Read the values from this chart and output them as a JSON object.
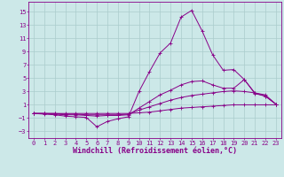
{
  "background_color": "#cce8e8",
  "grid_color": "#aacccc",
  "line_color": "#880088",
  "marker": "+",
  "xlabel": "Windchill (Refroidissement éolien,°C)",
  "xlabel_fontsize": 6,
  "tick_fontsize": 5,
  "yticks": [
    -3,
    -1,
    1,
    3,
    5,
    7,
    9,
    11,
    13,
    15
  ],
  "xticks": [
    0,
    1,
    2,
    3,
    4,
    5,
    6,
    7,
    8,
    9,
    10,
    11,
    12,
    13,
    14,
    15,
    16,
    17,
    18,
    19,
    20,
    21,
    22,
    23
  ],
  "xlim": [
    -0.5,
    23.5
  ],
  "ylim": [
    -4,
    16.5
  ],
  "curves": [
    {
      "x": [
        0,
        1,
        2,
        3,
        4,
        5,
        6,
        7,
        8,
        9,
        10,
        11,
        12,
        13,
        14,
        15,
        16,
        17,
        18,
        19,
        20,
        21,
        22,
        23
      ],
      "y": [
        -0.3,
        -0.3,
        -0.3,
        -0.3,
        -0.3,
        -0.3,
        -0.3,
        -0.3,
        -0.3,
        -0.3,
        -0.2,
        -0.1,
        0.1,
        0.3,
        0.5,
        0.6,
        0.7,
        0.8,
        0.9,
        1.0,
        1.0,
        1.0,
        1.0,
        1.0
      ]
    },
    {
      "x": [
        0,
        1,
        2,
        3,
        4,
        5,
        6,
        7,
        8,
        9,
        10,
        11,
        12,
        13,
        14,
        15,
        16,
        17,
        18,
        19,
        20,
        21,
        22,
        23
      ],
      "y": [
        -0.3,
        -0.3,
        -0.3,
        -0.4,
        -0.4,
        -0.5,
        -0.5,
        -0.5,
        -0.5,
        -0.4,
        0.2,
        0.7,
        1.2,
        1.7,
        2.1,
        2.4,
        2.6,
        2.8,
        3.0,
        3.1,
        3.0,
        2.8,
        2.5,
        1.1
      ]
    },
    {
      "x": [
        0,
        1,
        2,
        3,
        4,
        5,
        6,
        7,
        8,
        9,
        10,
        11,
        12,
        13,
        14,
        15,
        16,
        17,
        18,
        19,
        20,
        21,
        22,
        23
      ],
      "y": [
        -0.3,
        -0.3,
        -0.4,
        -0.5,
        -0.5,
        -0.6,
        -0.7,
        -0.6,
        -0.6,
        -0.5,
        0.5,
        1.5,
        2.5,
        3.2,
        4.0,
        4.5,
        4.6,
        4.0,
        3.5,
        3.5,
        4.8,
        2.8,
        2.3,
        1.1
      ]
    },
    {
      "x": [
        0,
        1,
        2,
        3,
        4,
        5,
        6,
        7,
        8,
        9,
        10,
        11,
        12,
        13,
        14,
        15,
        16,
        17,
        18,
        19,
        20,
        21,
        22,
        23
      ],
      "y": [
        -0.3,
        -0.4,
        -0.5,
        -0.7,
        -0.8,
        -0.9,
        -2.3,
        -1.5,
        -1.1,
        -0.8,
        3.0,
        6.0,
        8.8,
        10.3,
        14.2,
        15.2,
        12.1,
        8.5,
        6.2,
        6.3,
        4.8,
        2.7,
        2.3,
        1.1
      ]
    }
  ]
}
